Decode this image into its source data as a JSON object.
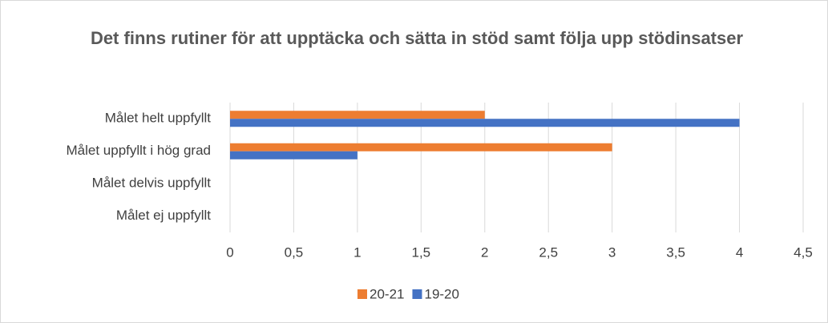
{
  "chart_data": {
    "type": "barh",
    "title": "Det finns rutiner för att upptäcka och sätta in stöd samt följa upp stödinsatser",
    "categories": [
      "Målet helt uppfyllt",
      "Målet uppfyllt i hög grad",
      "Målet delvis uppfyllt",
      "Målet ej uppfyllt"
    ],
    "series": [
      {
        "name": "20-21",
        "color": "#ed7d31",
        "values": [
          2,
          3,
          0,
          0
        ]
      },
      {
        "name": "19-20",
        "color": "#4472c4",
        "values": [
          4,
          1,
          0,
          0
        ]
      }
    ],
    "xlim": [
      0,
      4.5
    ],
    "xticks": [
      0,
      {
        "value": 0.5,
        "label": "0,5"
      },
      1,
      {
        "value": 1.5,
        "label": "1,5"
      },
      2,
      {
        "value": 2.5,
        "label": "2,5"
      },
      3,
      {
        "value": 3.5,
        "label": "3,5"
      },
      4,
      {
        "value": 4.5,
        "label": "4,5"
      }
    ],
    "grid": true,
    "legend": "bottom"
  }
}
